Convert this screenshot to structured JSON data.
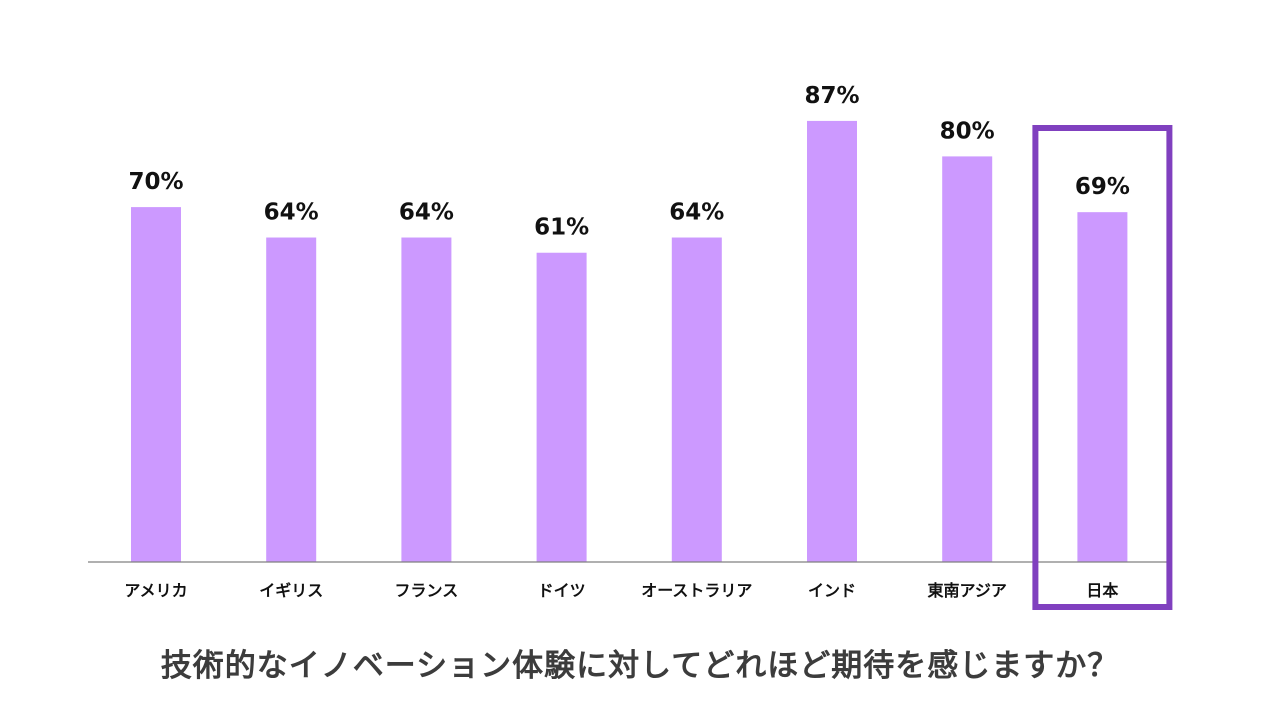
{
  "caption": "技術的なイノベーション体験に対してどれほど期待を感じますか？",
  "colors": {
    "bar": "#cc99ff",
    "highlight_frame": "#8040bf",
    "axis": "#808080",
    "text": "#111111",
    "caption": "#3c3c3c"
  },
  "chart_data": {
    "type": "bar",
    "title": "",
    "xlabel": "",
    "ylabel": "",
    "ylim": [
      0,
      100
    ],
    "grid": false,
    "categories": [
      "アメリカ",
      "イギリス",
      "フランス",
      "ドイツ",
      "オーストラリア",
      "インド",
      "東南アジア",
      "日本"
    ],
    "values": [
      70,
      64,
      64,
      61,
      64,
      87,
      80,
      69
    ],
    "value_labels": [
      "70%",
      "64%",
      "64%",
      "61%",
      "64%",
      "87%",
      "80%",
      "69%"
    ],
    "highlighted_category": "日本"
  }
}
